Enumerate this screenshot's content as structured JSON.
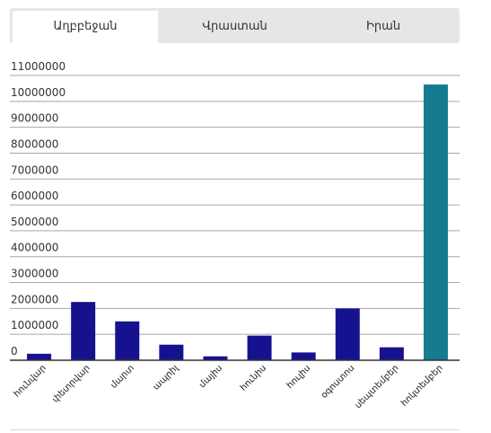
{
  "tabs": [
    {
      "label": "Աղբբեջան",
      "active": true
    },
    {
      "label": "Վրաստան",
      "active": false
    },
    {
      "label": "Իրան",
      "active": false
    }
  ],
  "chart_data": {
    "type": "bar",
    "title": "",
    "xlabel": "",
    "ylabel": "",
    "ylim": [
      0,
      11000000
    ],
    "y_ticks": [
      "0",
      "1000000",
      "2000000",
      "3000000",
      "4000000",
      "5000000",
      "6000000",
      "7000000",
      "8000000",
      "9000000",
      "10000000",
      "11000000"
    ],
    "grid": true,
    "categories": [
      "հունվար",
      "փետրվար",
      "մարտ",
      "ապրիլ",
      "մայիս",
      "հունիս",
      "հուլիս",
      "օգոստոս",
      "սեպտեմբեր",
      "հոկտեմբեր"
    ],
    "values": [
      250000,
      2250000,
      1500000,
      600000,
      150000,
      950000,
      300000,
      2000000,
      500000,
      10650000
    ],
    "colors": [
      "#16128f",
      "#16128f",
      "#16128f",
      "#16128f",
      "#16128f",
      "#16128f",
      "#16128f",
      "#16128f",
      "#16128f",
      "#157b8f"
    ]
  }
}
